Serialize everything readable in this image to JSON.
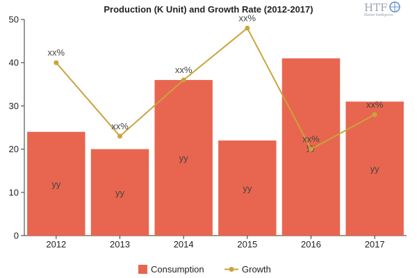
{
  "chart_data": {
    "type": "bar",
    "title": "Production (K Unit) and Growth Rate (2012-2017)",
    "categories": [
      "2012",
      "2013",
      "2014",
      "2015",
      "2016",
      "2017"
    ],
    "ylim": [
      0,
      50
    ],
    "yticks": [
      "0",
      "10",
      "20",
      "30",
      "40",
      "50"
    ],
    "grid": false,
    "legend_position": "bottom",
    "series": [
      {
        "name": "Consumption",
        "type": "bar",
        "color": "#e8664f",
        "values": [
          24,
          20,
          36,
          22,
          41,
          31
        ],
        "data_labels": [
          "yy",
          "yy",
          "yy",
          "yy",
          "yy",
          "yy"
        ]
      },
      {
        "name": "Growth",
        "type": "line",
        "color": "#c9a33c",
        "values": [
          40,
          23,
          36,
          48,
          20,
          28
        ],
        "data_labels": [
          "xx%",
          "xx%",
          "xx%",
          "xx%",
          "xx%",
          "xx%"
        ]
      }
    ]
  },
  "logo": {
    "text": "HTF",
    "subtext": "Market Intelligence"
  }
}
